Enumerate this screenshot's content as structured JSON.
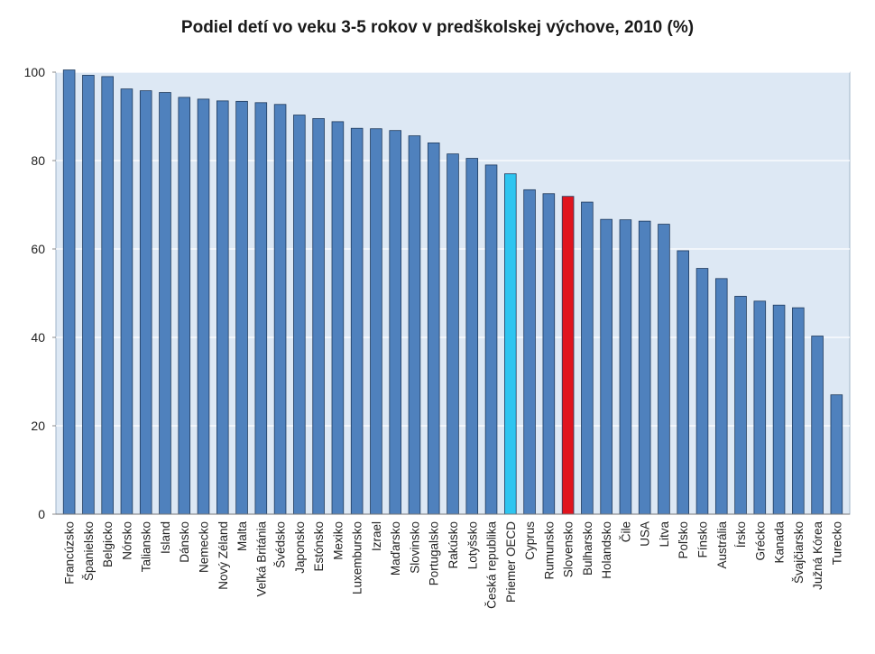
{
  "chart_data": {
    "type": "bar",
    "title": "Podiel detí vo veku 3-5 rokov v predškolskej výchove, 2010 (%)",
    "xlabel": "",
    "ylabel": "",
    "ylim": [
      0,
      100
    ],
    "yticks": [
      0,
      20,
      40,
      60,
      80,
      100
    ],
    "grid": true,
    "colors": {
      "default": "#4f81bd",
      "oecd_average": "#2ec5f0",
      "slovakia": "#e0141e",
      "plot_background": "#dde8f4",
      "gridline": "#ffffff"
    },
    "categories": [
      "Francúzsko",
      "Španielsko",
      "Belgicko",
      "Nórsko",
      "Taliansko",
      "Island",
      "Dánsko",
      "Nemecko",
      "Nový Zéland",
      "Malta",
      "Veľká Británia",
      "Švédsko",
      "Japonsko",
      "Estónsko",
      "Mexiko",
      "Luxembursko",
      "Izrael",
      "Maďarsko",
      "Slovinsko",
      "Portugalsko",
      "Rakúsko",
      "Lotyšsko",
      "Česká republika",
      "Priemer OECD",
      "Cyprus",
      "Rumunsko",
      "Slovensko",
      "Bulharsko",
      "Holandsko",
      "Čile",
      "USA",
      "Litva",
      "Poľsko",
      "Fínsko",
      "Austrália",
      "Írsko",
      "Grécko",
      "Kanada",
      "Švajčiarsko",
      "Južná Kórea",
      "Turecko"
    ],
    "values": [
      100.5,
      99.3,
      99.0,
      96.2,
      95.8,
      95.4,
      94.3,
      93.9,
      93.5,
      93.4,
      93.1,
      92.7,
      90.3,
      89.5,
      88.8,
      87.3,
      87.2,
      86.8,
      85.6,
      84.0,
      81.5,
      80.5,
      79.0,
      77.0,
      73.4,
      72.5,
      71.9,
      70.6,
      66.7,
      66.6,
      66.3,
      65.6,
      59.6,
      55.6,
      53.3,
      49.3,
      48.2,
      47.3,
      46.7,
      40.3,
      27.0
    ],
    "highlight": {
      "Priemer OECD": "oecd_average",
      "Slovensko": "slovakia"
    }
  }
}
